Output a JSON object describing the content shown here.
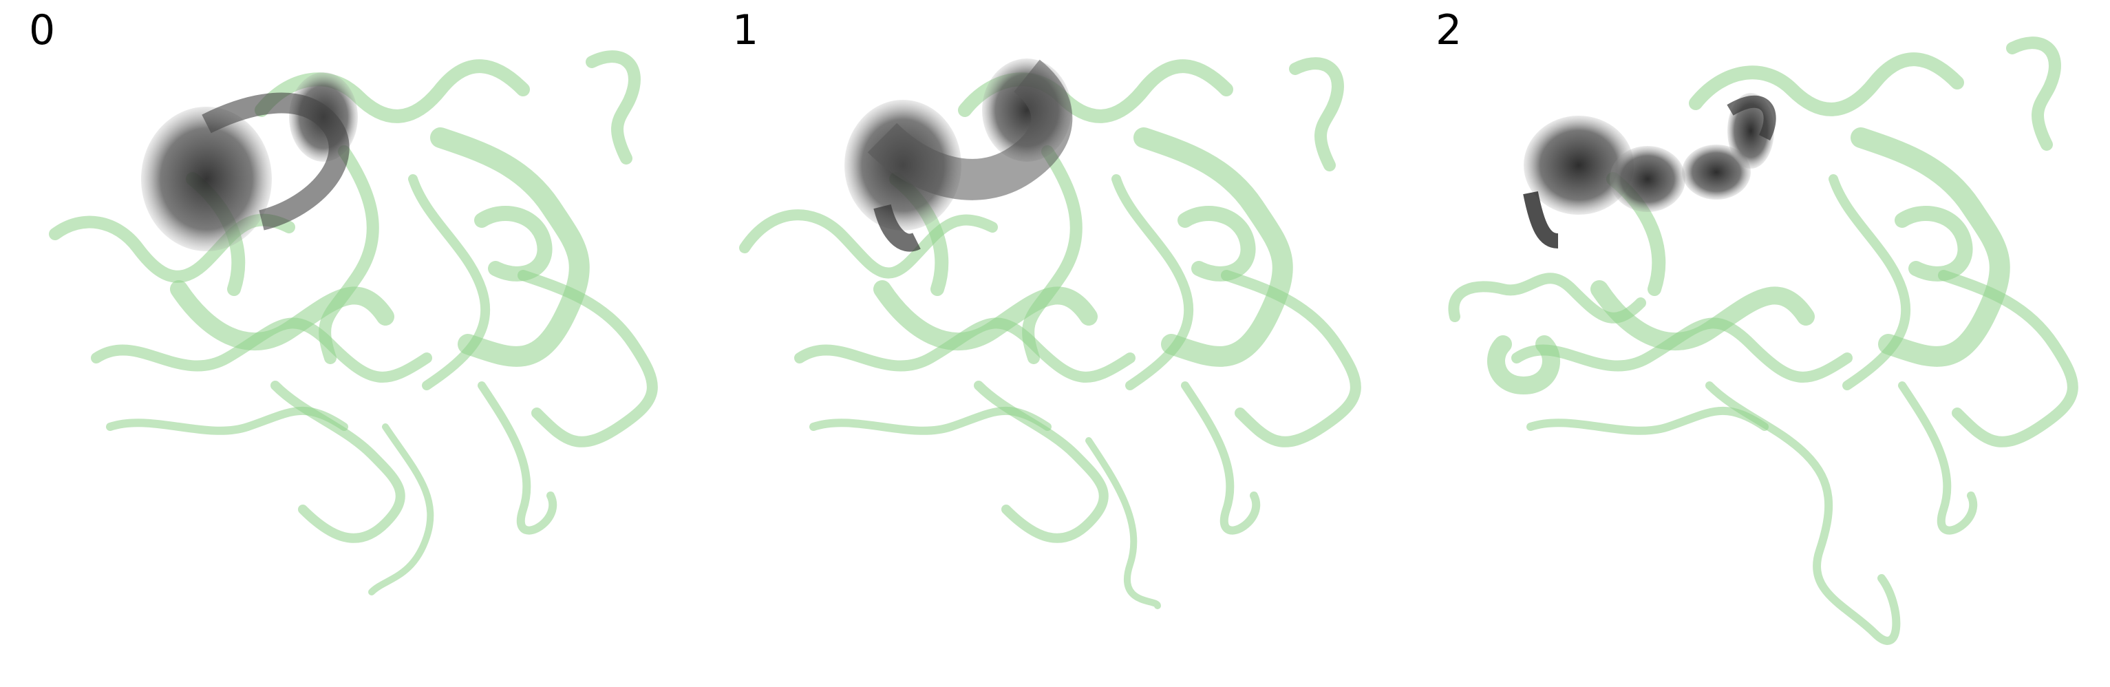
{
  "figure": {
    "panels": [
      {
        "label": "0"
      },
      {
        "label": "1"
      },
      {
        "label": "2"
      }
    ]
  },
  "colors": {
    "ribbon": "#8fd18a",
    "ribbon_dark": "#5f9a5a",
    "bundle": "#3a3a3a",
    "background": "#ffffff"
  },
  "icons": [
    "protein-ribbon-structure",
    "trajectory-bundle"
  ]
}
